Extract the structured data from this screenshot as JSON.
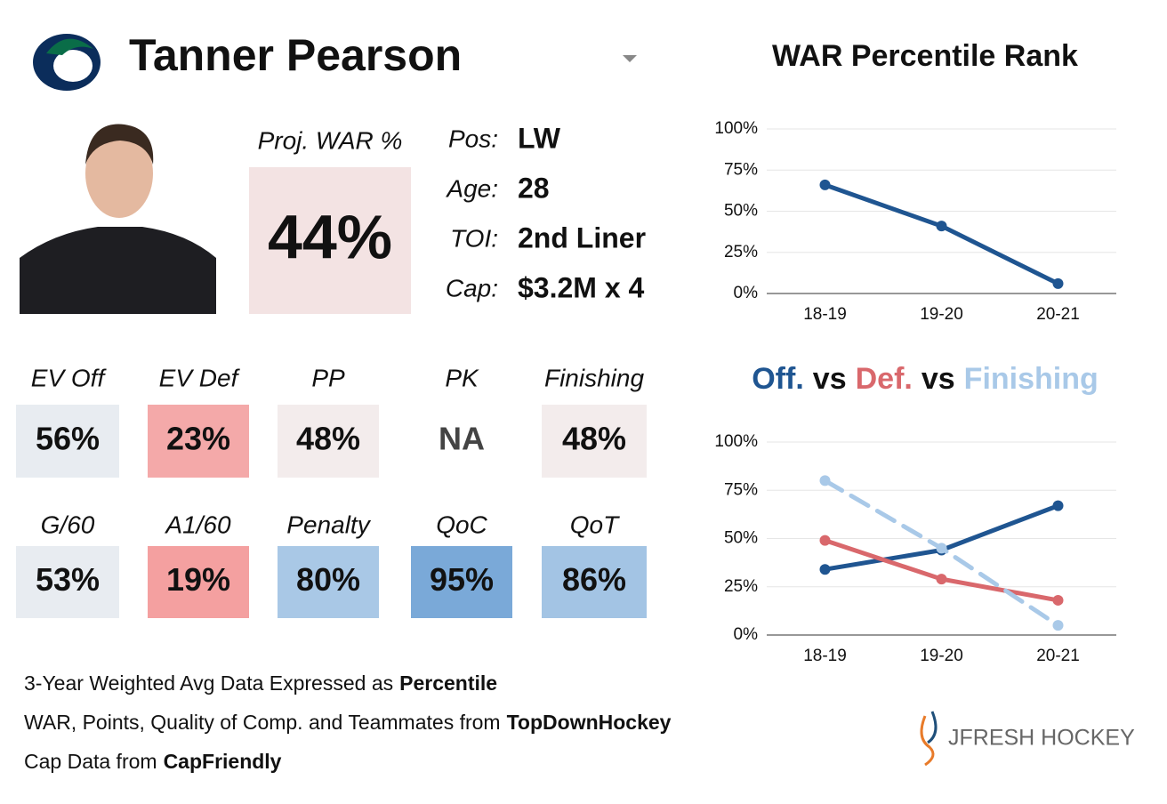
{
  "header": {
    "name": "Tanner Pearson"
  },
  "proj_war": {
    "label": "Proj. WAR %",
    "value": "44%",
    "color": "#f3e3e3"
  },
  "info": [
    {
      "label": "Pos:",
      "value": "LW"
    },
    {
      "label": "Age:",
      "value": "28"
    },
    {
      "label": "TOI:",
      "value": "2nd Liner"
    },
    {
      "label": "Cap:",
      "value": "$3.2M x 4"
    }
  ],
  "stats": [
    {
      "label": "EV Off",
      "value": "56%",
      "color": "#e8ecf1"
    },
    {
      "label": "EV Def",
      "value": "23%",
      "color": "#f4a9a9"
    },
    {
      "label": "PP",
      "value": "48%",
      "color": "#f3ecec"
    },
    {
      "label": "PK",
      "value": "NA",
      "color": null
    },
    {
      "label": "Finishing",
      "value": "48%",
      "color": "#f3ecec"
    },
    {
      "label": "G/60",
      "value": "53%",
      "color": "#e8ecf1"
    },
    {
      "label": "A1/60",
      "value": "19%",
      "color": "#f4a0a0"
    },
    {
      "label": "Penalty",
      "value": "80%",
      "color": "#a9c8e6"
    },
    {
      "label": "QoC",
      "value": "95%",
      "color": "#7aa9d8"
    },
    {
      "label": "QoT",
      "value": "86%",
      "color": "#a3c4e4"
    }
  ],
  "footer": [
    {
      "text": "3-Year Weighted Avg Data Expressed as",
      "bold": "Percentile"
    },
    {
      "text": "WAR, Points, Quality of Comp. and Teammates from",
      "bold": "TopDownHockey"
    },
    {
      "text": "Cap Data from",
      "bold": "CapFriendly"
    }
  ],
  "brand": "JFRESH HOCKEY",
  "chart_data": [
    {
      "type": "line",
      "title": "WAR Percentile Rank",
      "categories": [
        "18-19",
        "19-20",
        "20-21"
      ],
      "series": [
        {
          "color": "#1f5591",
          "values": [
            66,
            41,
            6
          ]
        }
      ],
      "ylim": [
        0,
        100
      ],
      "yticks": [
        {
          "value": 0,
          "label": "0%"
        },
        {
          "value": 25,
          "label": "25%"
        },
        {
          "value": 50,
          "label": "50%"
        },
        {
          "value": 75,
          "label": "75%"
        },
        {
          "value": 100,
          "label": "100%"
        }
      ],
      "grid": true
    },
    {
      "type": "line",
      "legend_separator": "vs",
      "categories": [
        "18-19",
        "19-20",
        "20-21"
      ],
      "series": [
        {
          "name": "Off.",
          "color": "#1f5591",
          "values": [
            34,
            44,
            67
          ]
        },
        {
          "name": "Def.",
          "color": "#d9686c",
          "values": [
            49,
            29,
            18
          ]
        },
        {
          "name": "Finishing",
          "color": "#a9c9e8",
          "dashed": true,
          "values": [
            80,
            45,
            5
          ]
        }
      ],
      "ylim": [
        0,
        100
      ],
      "yticks": [
        {
          "value": 0,
          "label": "0%"
        },
        {
          "value": 25,
          "label": "25%"
        },
        {
          "value": 50,
          "label": "50%"
        },
        {
          "value": 75,
          "label": "75%"
        },
        {
          "value": 100,
          "label": "100%"
        }
      ],
      "grid": true
    }
  ]
}
